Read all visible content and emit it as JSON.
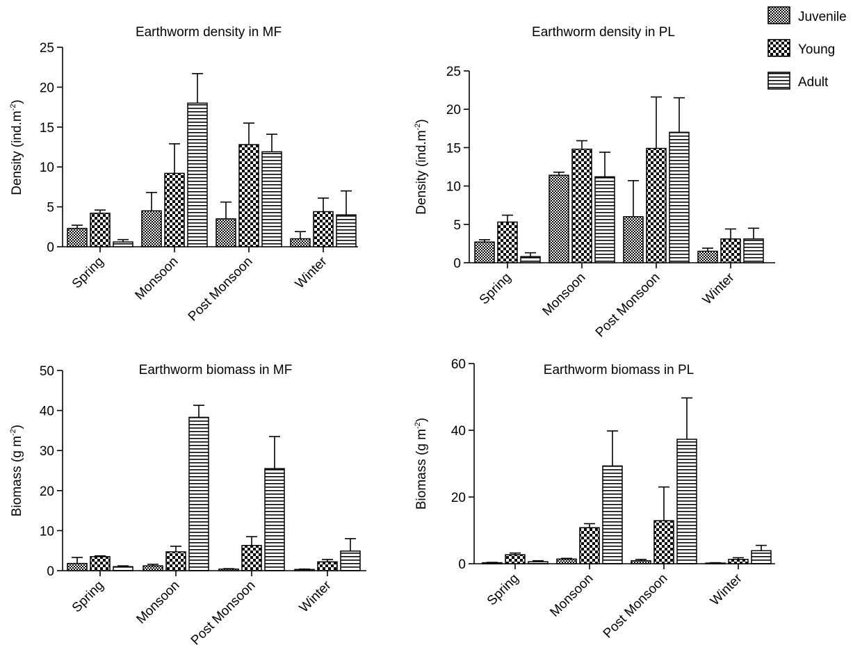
{
  "legend": [
    {
      "name": "Juvenile",
      "pattern": "fine-checker"
    },
    {
      "name": "Young",
      "pattern": "coarse-checker"
    },
    {
      "name": "Adult",
      "pattern": "horizontal-lines"
    }
  ],
  "colors": {
    "ink": "#000000",
    "background": "#ffffff"
  },
  "chart_data": [
    {
      "type": "bar",
      "title": "Earthworm density in MF",
      "ylabel": "Density (ind.m",
      "ylabel_sup": "-2",
      "ylabel_suffix": ")",
      "categories": [
        "Spring",
        "Monsoon",
        "Post Monsoon",
        "Winter"
      ],
      "ylim": [
        0,
        25
      ],
      "yticks": [
        "0",
        "5",
        "10",
        "15",
        "20",
        "25"
      ],
      "series": [
        {
          "name": "Juvenile",
          "values": [
            2.3,
            4.5,
            3.5,
            1.0
          ],
          "errors": [
            0.4,
            2.3,
            2.1,
            0.9
          ]
        },
        {
          "name": "Young",
          "values": [
            4.2,
            9.2,
            12.8,
            4.4
          ],
          "errors": [
            0.4,
            3.7,
            2.7,
            1.7
          ]
        },
        {
          "name": "Adult",
          "values": [
            0.6,
            18.0,
            11.9,
            4.0
          ],
          "errors": [
            0.3,
            3.7,
            2.2,
            3.0
          ]
        }
      ]
    },
    {
      "type": "bar",
      "title": "Earthworm density in PL",
      "ylabel": "Density (ind.m",
      "ylabel_sup": "-2",
      "ylabel_suffix": ")",
      "categories": [
        "Spring",
        "Monsoon",
        "Post Monsoon",
        "Winter"
      ],
      "ylim": [
        0,
        25
      ],
      "yticks": [
        "0",
        "5",
        "10",
        "15",
        "20",
        "25"
      ],
      "series": [
        {
          "name": "Juvenile",
          "values": [
            2.7,
            11.4,
            6.0,
            1.5
          ],
          "errors": [
            0.3,
            0.4,
            4.7,
            0.4
          ]
        },
        {
          "name": "Young",
          "values": [
            5.3,
            14.8,
            14.9,
            3.1
          ],
          "errors": [
            0.9,
            1.1,
            6.7,
            1.3
          ]
        },
        {
          "name": "Adult",
          "values": [
            0.8,
            11.2,
            17.0,
            3.1
          ],
          "errors": [
            0.5,
            3.2,
            4.5,
            1.4
          ]
        }
      ]
    },
    {
      "type": "bar",
      "title": "Earthworm biomass in MF",
      "ylabel": "Biomass (g m",
      "ylabel_sup": "-2",
      "ylabel_suffix": ")",
      "categories": [
        "Spring",
        "Monsoon",
        "Post Monsoon",
        "Winter"
      ],
      "ylim": [
        0,
        50
      ],
      "yticks": [
        "0",
        "10",
        "20",
        "30",
        "40",
        "50"
      ],
      "series": [
        {
          "name": "Juvenile",
          "values": [
            1.8,
            1.2,
            0.4,
            0.3
          ],
          "errors": [
            1.5,
            0.4,
            0.1,
            0.1
          ]
        },
        {
          "name": "Young",
          "values": [
            3.5,
            4.7,
            6.3,
            2.2
          ],
          "errors": [
            0.2,
            1.4,
            2.2,
            0.6
          ]
        },
        {
          "name": "Adult",
          "values": [
            1.0,
            38.3,
            25.5,
            4.9
          ],
          "errors": [
            0.2,
            3.0,
            8.0,
            3.1
          ]
        }
      ]
    },
    {
      "type": "bar",
      "title": "Earthworm biomass in PL",
      "ylabel": "Biomass (g m",
      "ylabel_sup": "-2",
      "ylabel_suffix": ")",
      "categories": [
        "Spring",
        "Monsoon",
        "Post Monsoon",
        "Winter"
      ],
      "ylim": [
        0,
        60
      ],
      "yticks": [
        "0",
        "20",
        "40",
        "60"
      ],
      "series": [
        {
          "name": "Juvenile",
          "values": [
            0.3,
            1.4,
            0.9,
            0.2
          ],
          "errors": [
            0.1,
            0.2,
            0.4,
            0.1
          ]
        },
        {
          "name": "Young",
          "values": [
            2.7,
            10.8,
            12.9,
            1.3
          ],
          "errors": [
            0.5,
            1.2,
            10.1,
            0.5
          ]
        },
        {
          "name": "Adult",
          "values": [
            0.6,
            29.3,
            37.3,
            3.9
          ],
          "errors": [
            0.3,
            10.5,
            12.4,
            1.6
          ]
        }
      ]
    }
  ]
}
